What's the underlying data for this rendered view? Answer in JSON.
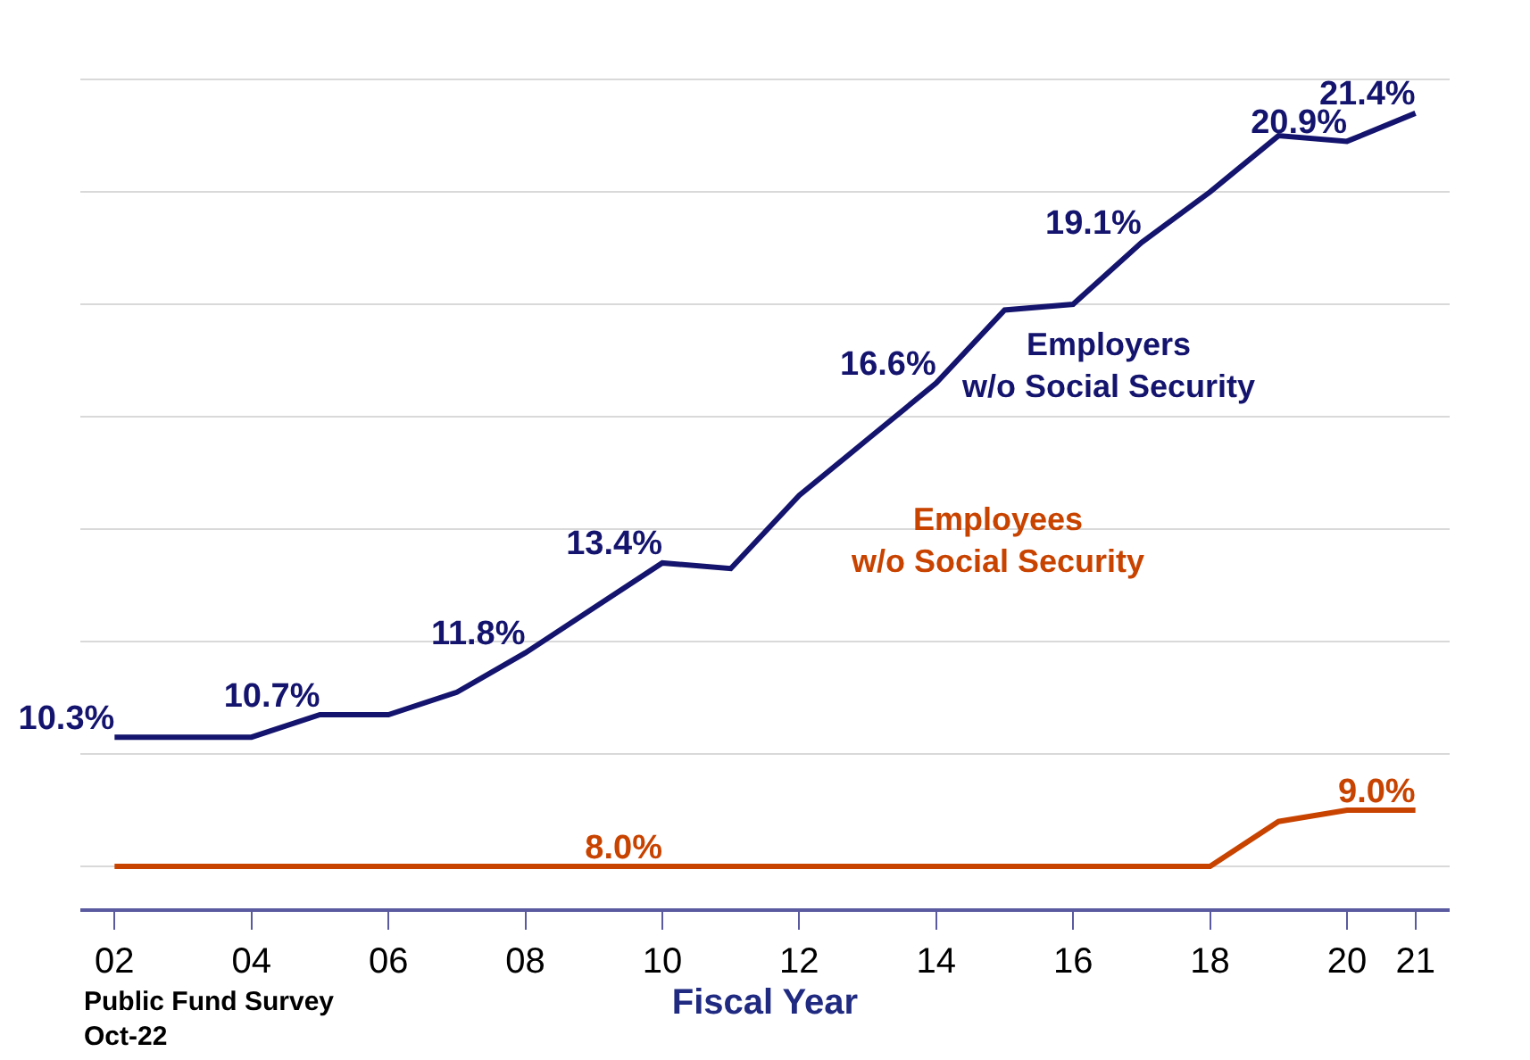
{
  "chart_data": {
    "type": "line",
    "xlabel": "Fiscal Year",
    "x": [
      2002,
      2003,
      2004,
      2005,
      2006,
      2007,
      2008,
      2009,
      2010,
      2011,
      2012,
      2013,
      2014,
      2015,
      2016,
      2017,
      2018,
      2019,
      2020,
      2021
    ],
    "series": [
      {
        "name": "Employers\nw/o Social Security",
        "color": "#14146e",
        "values": [
          10.3,
          10.3,
          10.3,
          10.7,
          10.7,
          11.1,
          11.8,
          12.6,
          13.4,
          13.3,
          14.6,
          15.6,
          16.6,
          17.9,
          18.0,
          19.1,
          20.0,
          21.0,
          20.9,
          21.4
        ],
        "value_labels": [
          "10.3%",
          null,
          null,
          "10.7%",
          null,
          null,
          "11.8%",
          null,
          "13.4%",
          null,
          null,
          null,
          "16.6%",
          null,
          null,
          "19.1%",
          null,
          null,
          "20.9%",
          "21.4%"
        ]
      },
      {
        "name": "Employees\nw/o Social Security",
        "color": "#c84300",
        "values": [
          8.0,
          8.0,
          8.0,
          8.0,
          8.0,
          8.0,
          8.0,
          8.0,
          8.0,
          8.0,
          8.0,
          8.0,
          8.0,
          8.0,
          8.0,
          8.0,
          8.0,
          8.8,
          9.0,
          9.0
        ],
        "value_labels": [
          null,
          null,
          null,
          null,
          null,
          null,
          null,
          null,
          "8.0%",
          null,
          null,
          null,
          null,
          null,
          null,
          null,
          null,
          null,
          null,
          "9.0%"
        ]
      }
    ],
    "xlim": [
      2001.5,
      2021.5
    ],
    "xticks": [
      {
        "value": 2002,
        "label": "02"
      },
      {
        "value": 2004,
        "label": "04"
      },
      {
        "value": 2006,
        "label": "06"
      },
      {
        "value": 2008,
        "label": "08"
      },
      {
        "value": 2010,
        "label": "10"
      },
      {
        "value": 2012,
        "label": "12"
      },
      {
        "value": 2014,
        "label": "14"
      },
      {
        "value": 2016,
        "label": "16"
      },
      {
        "value": 2018,
        "label": "18"
      },
      {
        "value": 2020,
        "label": "20"
      },
      {
        "value": 2021,
        "label": "21"
      }
    ],
    "grid": "y",
    "tick_labels": "x",
    "marker": "none",
    "line_style": "solid",
    "annotations": [
      "Public Fund Survey\nOct-22"
    ]
  }
}
